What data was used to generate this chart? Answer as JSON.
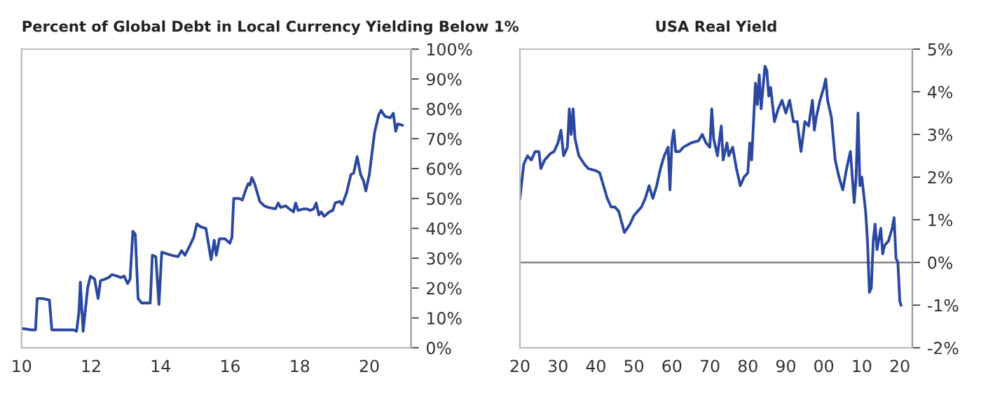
{
  "chart_data": [
    {
      "type": "line",
      "title": "Percent of Global Debt in Local Currency Yielding Below 1%",
      "grid": false,
      "legend": false,
      "xlim": [
        10,
        21.2
      ],
      "xticks": [
        10,
        12,
        14,
        16,
        18,
        20
      ],
      "ylim": [
        0,
        100
      ],
      "yticks": [
        {
          "value": 0,
          "label": "0%"
        },
        {
          "value": 10,
          "label": "10%"
        },
        {
          "value": 20,
          "label": "20%"
        },
        {
          "value": 30,
          "label": "30%"
        },
        {
          "value": 40,
          "label": "40%"
        },
        {
          "value": 50,
          "label": "50%"
        },
        {
          "value": 60,
          "label": "60%"
        },
        {
          "value": 70,
          "label": "70%"
        },
        {
          "value": 80,
          "label": "80%"
        },
        {
          "value": 90,
          "label": "90%"
        },
        {
          "value": 100,
          "label": "100%"
        }
      ],
      "series": [
        {
          "color": "#2a48a0",
          "x": [
            10.0,
            10.3,
            10.4,
            10.45,
            10.6,
            10.8,
            10.87,
            11.0,
            11.5,
            11.58,
            11.65,
            11.69,
            11.77,
            11.9,
            11.98,
            12.1,
            12.2,
            12.27,
            12.4,
            12.5,
            12.6,
            12.75,
            12.85,
            12.95,
            13.05,
            13.12,
            13.2,
            13.27,
            13.35,
            13.45,
            13.7,
            13.76,
            13.86,
            13.95,
            14.03,
            14.3,
            14.5,
            14.6,
            14.7,
            14.85,
            14.95,
            15.04,
            15.15,
            15.3,
            15.45,
            15.54,
            15.6,
            15.69,
            15.85,
            15.99,
            16.05,
            16.1,
            16.25,
            16.35,
            16.45,
            16.52,
            16.57,
            16.62,
            16.7,
            16.85,
            16.98,
            17.1,
            17.3,
            17.38,
            17.45,
            17.6,
            17.7,
            17.82,
            17.88,
            17.95,
            18.1,
            18.2,
            18.3,
            18.4,
            18.47,
            18.55,
            18.62,
            18.7,
            18.85,
            18.95,
            19.02,
            19.15,
            19.22,
            19.35,
            19.47,
            19.55,
            19.65,
            19.75,
            19.83,
            19.9,
            20.0,
            20.15,
            20.27,
            20.34,
            20.45,
            20.6,
            20.69,
            20.76,
            20.82,
            20.95
          ],
          "values": [
            6.5,
            6,
            6,
            16.5,
            16.5,
            16,
            6,
            6,
            6,
            5.5,
            12,
            22,
            5.5,
            20,
            24,
            23,
            16.5,
            22.5,
            23,
            23.5,
            24.5,
            24,
            23.5,
            24,
            21.5,
            23,
            39,
            38,
            16.5,
            15,
            15,
            31,
            30.5,
            14.5,
            32,
            31,
            30.5,
            32.5,
            31,
            34.5,
            37,
            41.5,
            40.5,
            40,
            29.5,
            36,
            31,
            36.5,
            36.5,
            35,
            37,
            50,
            50,
            49.5,
            53,
            55,
            54.5,
            57,
            55,
            49,
            47.5,
            47,
            46.5,
            48.5,
            47,
            47.5,
            46.5,
            45.5,
            48.5,
            46,
            46.5,
            46.5,
            46,
            46.5,
            48.5,
            44.5,
            45.5,
            44,
            45.5,
            46,
            48.5,
            49,
            48,
            52,
            58,
            58.5,
            64,
            58,
            56,
            52.5,
            58,
            72,
            78,
            79.5,
            77.5,
            77,
            78.5,
            72.5,
            75,
            74.5
          ]
        }
      ]
    },
    {
      "type": "line",
      "title": "USA Real Yield",
      "grid": false,
      "legend": false,
      "xlim": [
        1920,
        2023.3
      ],
      "xticks": [
        {
          "value": 1920,
          "label": "20"
        },
        {
          "value": 1930,
          "label": "30"
        },
        {
          "value": 1940,
          "label": "40"
        },
        {
          "value": 1950,
          "label": "50"
        },
        {
          "value": 1960,
          "label": "60"
        },
        {
          "value": 1970,
          "label": "70"
        },
        {
          "value": 1980,
          "label": "80"
        },
        {
          "value": 1990,
          "label": "90"
        },
        {
          "value": 2000,
          "label": "00"
        },
        {
          "value": 2010,
          "label": "10"
        },
        {
          "value": 2020,
          "label": "20"
        }
      ],
      "ylim": [
        -2,
        5
      ],
      "yticks": [
        {
          "value": -2,
          "label": "-2%"
        },
        {
          "value": -1,
          "label": "-1%"
        },
        {
          "value": 0,
          "label": "0%"
        },
        {
          "value": 1,
          "label": "1%"
        },
        {
          "value": 2,
          "label": "2%"
        },
        {
          "value": 3,
          "label": "3%"
        },
        {
          "value": 4,
          "label": "4%"
        },
        {
          "value": 5,
          "label": "5%"
        }
      ],
      "ref_lines": [
        {
          "axis": "y",
          "value": 0,
          "label": null,
          "color": "#777777"
        }
      ],
      "series": [
        {
          "color": "#2a48a0",
          "x": [
            1920,
            1921,
            1922,
            1923,
            1924,
            1925,
            1925.5,
            1926.5,
            1928,
            1929,
            1930,
            1930.8,
            1931.5,
            1932.5,
            1933,
            1933.5,
            1934,
            1934.5,
            1935.5,
            1937,
            1938,
            1940,
            1941,
            1942,
            1943,
            1944,
            1945,
            1946,
            1947.5,
            1949,
            1950,
            1951,
            1952,
            1953,
            1954,
            1955,
            1956,
            1957,
            1958,
            1959,
            1959.5,
            1960,
            1960.5,
            1961,
            1962,
            1963,
            1965,
            1967,
            1968,
            1969,
            1970,
            1970.5,
            1971,
            1972,
            1973,
            1973.5,
            1974.5,
            1975,
            1976,
            1977,
            1978,
            1979,
            1980,
            1980.5,
            1981,
            1982,
            1982.5,
            1983,
            1983.5,
            1984.5,
            1985,
            1985.5,
            1986,
            1987,
            1988,
            1989,
            1990,
            1991,
            1992,
            1993,
            1994,
            1995,
            1996,
            1997,
            1997.5,
            1998,
            1999,
            2000,
            2000.5,
            2001,
            2002,
            2003,
            2004,
            2005,
            2006,
            2007,
            2007.5,
            2008,
            2008.5,
            2009,
            2009.5,
            2010,
            2011,
            2011.5,
            2012,
            2012.5,
            2013,
            2013.5,
            2014,
            2015,
            2015.5,
            2016,
            2017,
            2018,
            2018.5,
            2019,
            2019.5,
            2020,
            2020.3
          ],
          "values": [
            1.5,
            2.3,
            2.5,
            2.4,
            2.6,
            2.6,
            2.2,
            2.4,
            2.55,
            2.6,
            2.8,
            3.1,
            2.5,
            2.7,
            3.6,
            3.0,
            3.6,
            2.9,
            2.5,
            2.3,
            2.2,
            2.15,
            2.1,
            1.8,
            1.5,
            1.3,
            1.3,
            1.2,
            0.7,
            0.9,
            1.1,
            1.2,
            1.3,
            1.5,
            1.8,
            1.5,
            1.8,
            2.2,
            2.5,
            2.7,
            1.7,
            2.8,
            3.1,
            2.6,
            2.6,
            2.7,
            2.8,
            2.85,
            3.0,
            2.8,
            2.7,
            3.6,
            2.9,
            2.5,
            3.2,
            2.4,
            2.8,
            2.5,
            2.7,
            2.2,
            1.8,
            2.0,
            2.1,
            2.8,
            2.4,
            4.2,
            3.7,
            4.4,
            3.6,
            4.6,
            4.5,
            3.9,
            4.1,
            3.3,
            3.6,
            3.8,
            3.5,
            3.8,
            3.3,
            3.3,
            2.6,
            3.3,
            3.2,
            3.8,
            3.1,
            3.4,
            3.8,
            4.1,
            4.3,
            3.8,
            3.4,
            2.4,
            2.0,
            1.7,
            2.2,
            2.6,
            2.0,
            1.4,
            2.0,
            3.5,
            1.8,
            2.0,
            1.2,
            0.5,
            -0.7,
            -0.6,
            0.5,
            0.9,
            0.3,
            0.8,
            0.2,
            0.4,
            0.5,
            0.8,
            1.05,
            0.1,
            0.0,
            -0.9,
            -1.0
          ]
        }
      ]
    }
  ]
}
